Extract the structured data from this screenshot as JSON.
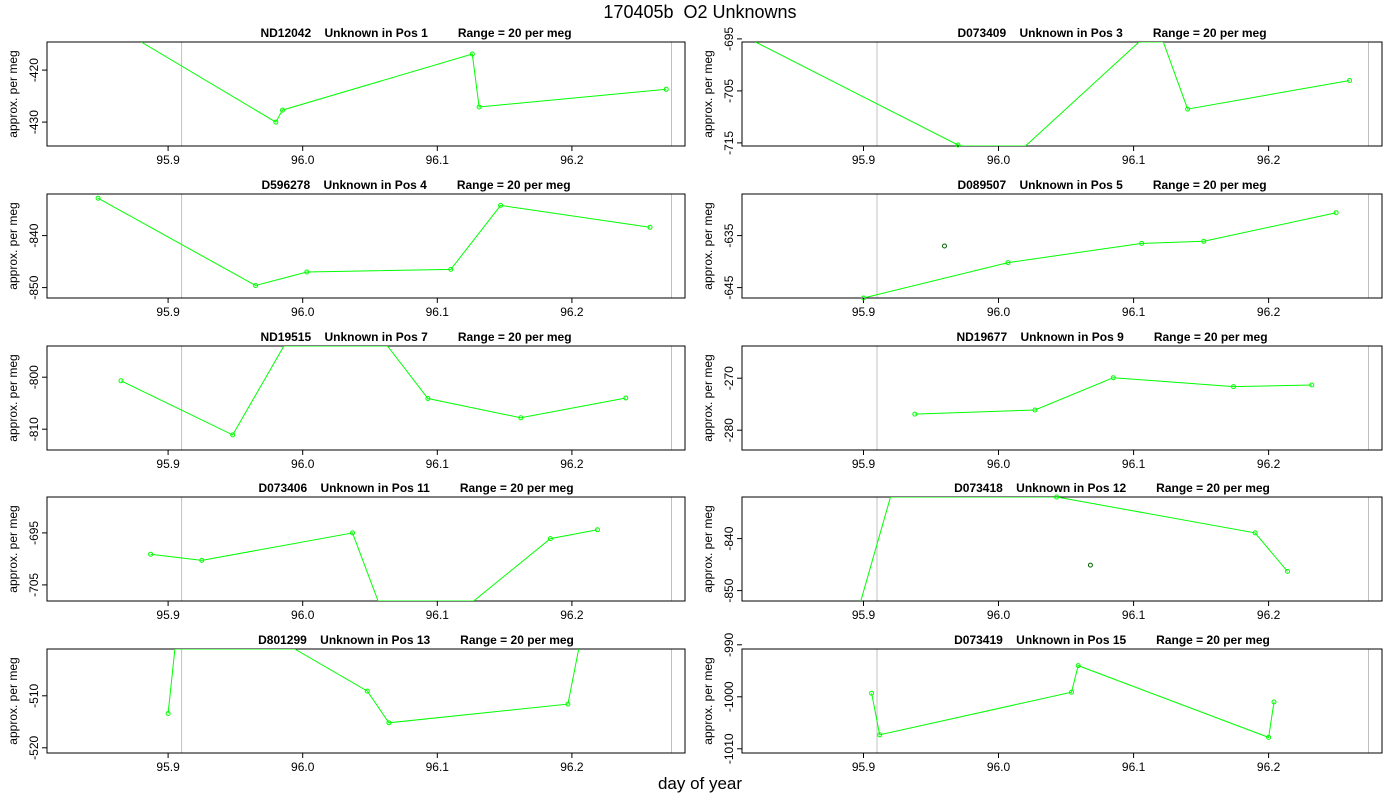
{
  "title": "170405b  O2 Unknowns",
  "xlabel": "day of year",
  "colors": {
    "series": "#00ff00",
    "outlier": "#006400",
    "vline": "#c0c0c0",
    "axis": "#000000"
  },
  "chart_data": [
    {
      "type": "line",
      "title": "ND12042    Unknown in Pos 1         Range = 20 per meg",
      "ylabel": "approx. per meg",
      "xlim": [
        95.81,
        96.284
      ],
      "ylim": [
        -434.6,
        -414.6
      ],
      "xticks": [
        95.9,
        96.0,
        96.1,
        96.2
      ],
      "yticks": [
        -420,
        -430
      ],
      "vlines": [
        95.91,
        96.274
      ],
      "line": [
        [
          95.88,
          -414.6
        ],
        [
          95.98,
          -430.0
        ],
        [
          95.985,
          -427.7
        ],
        [
          96.126,
          -416.9
        ],
        [
          96.131,
          -427.1
        ],
        [
          96.27,
          -423.7
        ]
      ],
      "points": [
        [
          95.98,
          -430.0
        ],
        [
          95.985,
          -427.7
        ],
        [
          96.126,
          -416.9
        ],
        [
          96.131,
          -427.1
        ],
        [
          96.27,
          -423.7
        ]
      ],
      "outliers": []
    },
    {
      "type": "line",
      "title": "D073409    Unknown in Pos 3         Range = 20 per meg",
      "ylabel": "approx. per meg",
      "xlim": [
        95.81,
        96.284
      ],
      "ylim": [
        -715.6,
        -695.6
      ],
      "xticks": [
        95.9,
        96.0,
        96.1,
        96.2
      ],
      "yticks": [
        -695,
        -705,
        -715
      ],
      "vlines": [
        95.91,
        96.274
      ],
      "line": [
        [
          95.82,
          -695.6
        ],
        [
          95.97,
          -715.4
        ],
        [
          95.973,
          -715.6
        ],
        [
          96.02,
          -715.6
        ],
        [
          96.104,
          -695.6
        ],
        [
          96.122,
          -695.6
        ],
        [
          96.14,
          -708.5
        ],
        [
          96.26,
          -703.0
        ]
      ],
      "points": [
        [
          95.97,
          -715.4
        ],
        [
          96.14,
          -708.5
        ],
        [
          96.26,
          -703.0
        ]
      ],
      "outliers": []
    },
    {
      "type": "line",
      "title": "D596278    Unknown in Pos 4         Range = 20 per meg",
      "ylabel": "approx. per meg",
      "xlim": [
        95.81,
        96.284
      ],
      "ylim": [
        -852.0,
        -832.0
      ],
      "xticks": [
        95.9,
        96.0,
        96.1,
        96.2
      ],
      "yticks": [
        -840,
        -850
      ],
      "vlines": [
        95.91,
        96.274
      ],
      "line": [
        [
          95.848,
          -832.8
        ],
        [
          95.965,
          -849.6
        ],
        [
          96.003,
          -847.0
        ],
        [
          96.11,
          -846.5
        ],
        [
          96.147,
          -834.2
        ],
        [
          96.258,
          -838.4
        ]
      ],
      "points": [
        [
          95.848,
          -832.8
        ],
        [
          95.965,
          -849.6
        ],
        [
          96.003,
          -847.0
        ],
        [
          96.11,
          -846.5
        ],
        [
          96.147,
          -834.2
        ],
        [
          96.258,
          -838.4
        ]
      ],
      "outliers": []
    },
    {
      "type": "line",
      "title": "D089507    Unknown in Pos 5         Range = 20 per meg",
      "ylabel": "approx. per meg",
      "xlim": [
        95.81,
        96.284
      ],
      "ylim": [
        -647.0,
        -627.0
      ],
      "xticks": [
        95.9,
        96.0,
        96.1,
        96.2
      ],
      "yticks": [
        -635,
        -645
      ],
      "vlines": [
        95.91,
        96.274
      ],
      "line": [
        [
          95.9,
          -647.0
        ],
        [
          96.007,
          -640.2
        ],
        [
          96.106,
          -636.5
        ],
        [
          96.152,
          -636.1
        ],
        [
          96.25,
          -630.6
        ]
      ],
      "points": [
        [
          95.9,
          -647.0
        ],
        [
          96.007,
          -640.2
        ],
        [
          96.106,
          -636.5
        ],
        [
          96.152,
          -636.1
        ],
        [
          96.25,
          -630.6
        ]
      ],
      "outliers": [
        [
          95.96,
          -637.0
        ]
      ]
    },
    {
      "type": "line",
      "title": "ND19515    Unknown in Pos 7         Range = 20 per meg",
      "ylabel": "approx. per meg",
      "xlim": [
        95.81,
        96.284
      ],
      "ylim": [
        -814.0,
        -794.0
      ],
      "xticks": [
        95.9,
        96.0,
        96.1,
        96.2
      ],
      "yticks": [
        -800,
        -810
      ],
      "vlines": [
        95.91,
        96.274
      ],
      "line": [
        [
          95.865,
          -800.7
        ],
        [
          95.948,
          -811.1
        ],
        [
          95.986,
          -794.0
        ],
        [
          96.063,
          -794.0
        ],
        [
          96.093,
          -804.1
        ],
        [
          96.162,
          -807.8
        ],
        [
          96.24,
          -804.0
        ]
      ],
      "points": [
        [
          95.865,
          -800.7
        ],
        [
          95.948,
          -811.1
        ],
        [
          96.093,
          -804.1
        ],
        [
          96.162,
          -807.8
        ],
        [
          96.24,
          -804.0
        ]
      ],
      "outliers": []
    },
    {
      "type": "line",
      "title": "ND19677    Unknown in Pos 9         Range = 20 per meg",
      "ylabel": "approx. per meg",
      "xlim": [
        95.81,
        96.284
      ],
      "ylim": [
        -283.8,
        -263.8
      ],
      "xticks": [
        95.9,
        96.0,
        96.1,
        96.2
      ],
      "yticks": [
        -270,
        -280
      ],
      "vlines": [
        95.91,
        96.274
      ],
      "line": [
        [
          95.938,
          -276.9
        ],
        [
          96.027,
          -276.1
        ],
        [
          96.085,
          -269.9
        ],
        [
          96.174,
          -271.6
        ],
        [
          96.232,
          -271.3
        ]
      ],
      "points": [
        [
          95.938,
          -276.9
        ],
        [
          96.027,
          -276.1
        ],
        [
          96.085,
          -269.9
        ],
        [
          96.174,
          -271.6
        ],
        [
          96.232,
          -271.3
        ]
      ],
      "outliers": []
    },
    {
      "type": "line",
      "title": "D073406    Unknown in Pos 11         Range = 20 per meg",
      "ylabel": "approx. per meg",
      "xlim": [
        95.81,
        96.284
      ],
      "ylim": [
        -708.1,
        -688.1
      ],
      "xticks": [
        95.9,
        96.0,
        96.1,
        96.2
      ],
      "yticks": [
        -695,
        -705
      ],
      "vlines": [
        95.91,
        96.274
      ],
      "line": [
        [
          95.887,
          -699.1
        ],
        [
          95.925,
          -700.3
        ],
        [
          96.037,
          -695.0
        ],
        [
          96.056,
          -708.1
        ],
        [
          96.127,
          -708.1
        ],
        [
          96.184,
          -696.1
        ],
        [
          96.219,
          -694.4
        ]
      ],
      "points": [
        [
          95.887,
          -699.1
        ],
        [
          95.925,
          -700.3
        ],
        [
          96.037,
          -695.0
        ],
        [
          96.184,
          -696.1
        ],
        [
          96.219,
          -694.4
        ]
      ],
      "outliers": []
    },
    {
      "type": "line",
      "title": "D073418    Unknown in Pos 12         Range = 20 per meg",
      "ylabel": "approx. per meg",
      "xlim": [
        95.81,
        96.284
      ],
      "ylim": [
        -852.0,
        -832.0
      ],
      "xticks": [
        95.9,
        96.0,
        96.1,
        96.2
      ],
      "yticks": [
        -840,
        -850
      ],
      "vlines": [
        95.91,
        96.274
      ],
      "line": [
        [
          95.898,
          -852.0
        ],
        [
          95.92,
          -832.0
        ],
        [
          96.043,
          -832.0
        ],
        [
          96.19,
          -838.9
        ],
        [
          96.214,
          -846.3
        ]
      ],
      "points": [
        [
          96.043,
          -832.0
        ],
        [
          96.19,
          -838.9
        ],
        [
          96.214,
          -846.3
        ]
      ],
      "outliers": [
        [
          96.068,
          -845.1
        ]
      ]
    },
    {
      "type": "line",
      "title": "D801299    Unknown in Pos 13         Range = 20 per meg",
      "ylabel": "approx. per meg",
      "xlim": [
        95.81,
        96.284
      ],
      "ylim": [
        -521.0,
        -501.0
      ],
      "xticks": [
        95.9,
        96.0,
        96.1,
        96.2
      ],
      "yticks": [
        -510,
        -520
      ],
      "vlines": [
        95.91,
        96.274
      ],
      "line": [
        [
          95.9,
          -513.4
        ],
        [
          95.905,
          -501.0
        ],
        [
          95.994,
          -501.0
        ],
        [
          96.048,
          -509.1
        ],
        [
          96.064,
          -515.2
        ],
        [
          96.197,
          -511.6
        ],
        [
          96.205,
          -501.0
        ]
      ],
      "points": [
        [
          95.9,
          -513.4
        ],
        [
          96.048,
          -509.1
        ],
        [
          96.064,
          -515.2
        ],
        [
          96.197,
          -511.6
        ]
      ],
      "outliers": []
    },
    {
      "type": "line",
      "title": "D073419    Unknown in Pos 15         Range = 20 per meg",
      "ylabel": "approx. per meg",
      "xlim": [
        95.81,
        96.284
      ],
      "ylim": [
        -1010.8,
        -990.8
      ],
      "xticks": [
        95.9,
        96.0,
        96.1,
        96.2
      ],
      "yticks": [
        -990,
        -1000,
        -1010
      ],
      "vlines": [
        95.91,
        96.274
      ],
      "line": [
        [
          95.906,
          -999.3
        ],
        [
          95.912,
          -1007.3
        ],
        [
          96.054,
          -999.1
        ],
        [
          96.059,
          -994.0
        ],
        [
          96.2,
          -1007.8
        ],
        [
          96.204,
          -1001.0
        ]
      ],
      "points": [
        [
          95.906,
          -999.3
        ],
        [
          95.912,
          -1007.3
        ],
        [
          96.054,
          -999.1
        ],
        [
          96.059,
          -994.0
        ],
        [
          96.2,
          -1007.8
        ],
        [
          96.204,
          -1001.0
        ]
      ],
      "outliers": []
    }
  ]
}
